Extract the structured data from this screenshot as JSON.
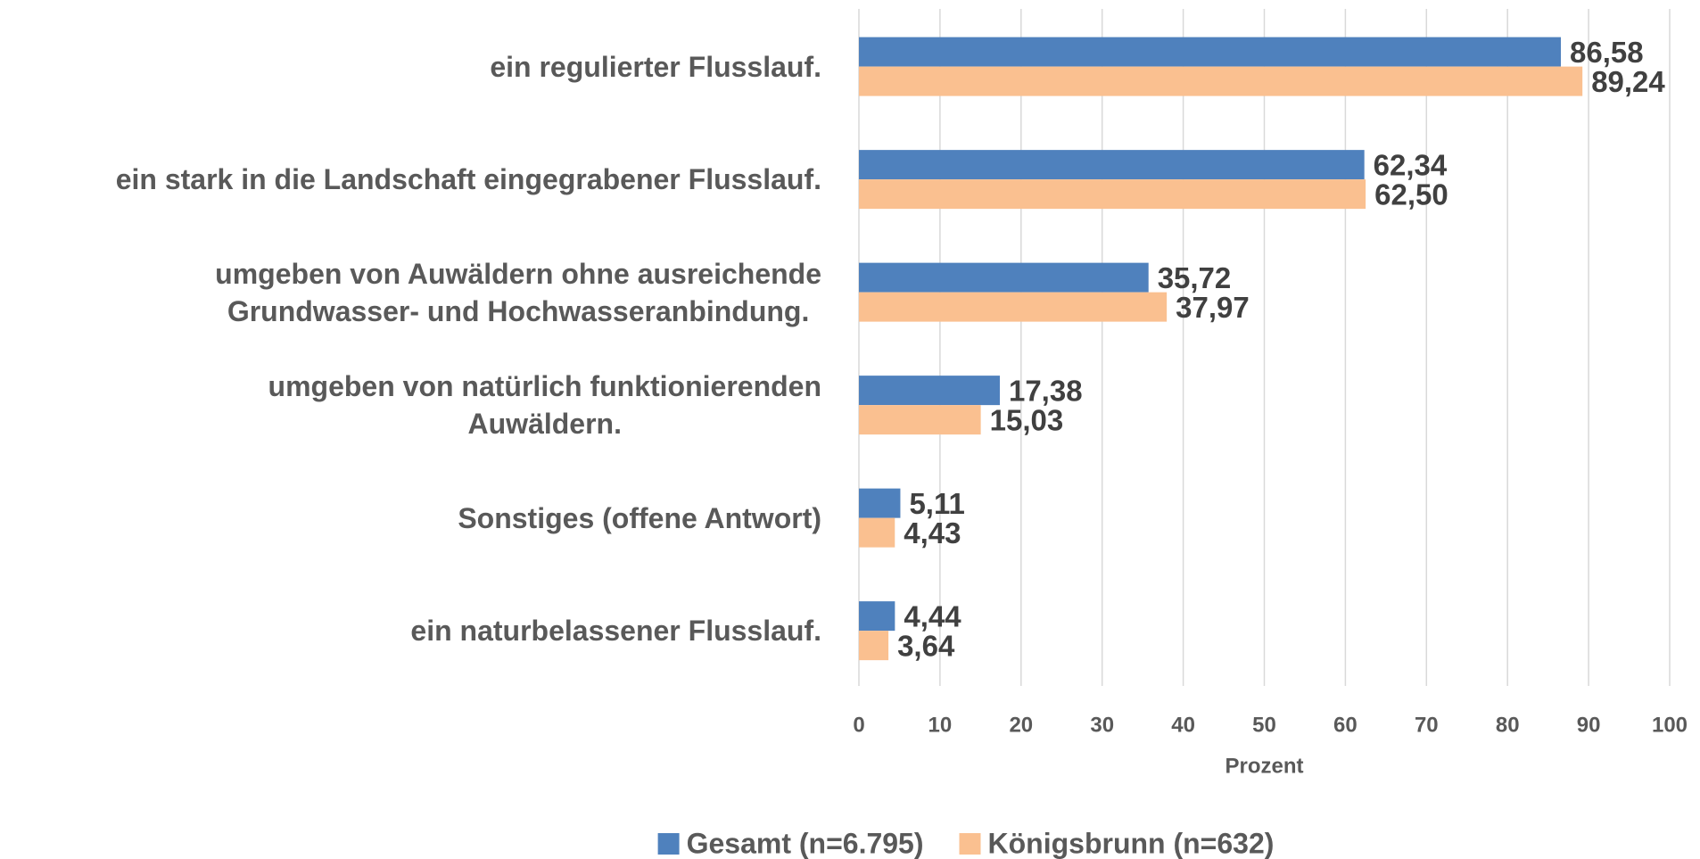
{
  "chart_data": {
    "type": "bar",
    "orientation": "horizontal",
    "categories": [
      "ein regulierter Flusslauf.",
      "ein stark in die Landschaft eingegrabener Flusslauf.",
      "umgeben von Auwäldern ohne ausreichende\nGrundwasser- und Hochwasseranbindung.",
      "umgeben von natürlich funktionierenden\nAuwäldern.",
      "Sonstiges (offene Antwort)",
      "ein naturbelassener Flusslauf."
    ],
    "series": [
      {
        "name": "Gesamt (n=6.795)",
        "color": "#4f81bd",
        "values": [
          86.58,
          62.34,
          35.72,
          17.38,
          5.11,
          4.44
        ],
        "value_labels": [
          "86,58",
          "62,34",
          "35,72",
          "17,38",
          "5,11",
          "4,44"
        ]
      },
      {
        "name": "Königsbrunn (n=632)",
        "color": "#fac090",
        "values": [
          89.24,
          62.5,
          37.97,
          15.03,
          4.43,
          3.64
        ],
        "value_labels": [
          "89,24",
          "62,50",
          "37,97",
          "15,03",
          "4,43",
          "3,64"
        ]
      }
    ],
    "xlabel": "Prozent",
    "xlim": [
      0,
      100
    ],
    "xticks": [
      0,
      10,
      20,
      30,
      40,
      50,
      60,
      70,
      80,
      90,
      100
    ],
    "grid": true,
    "legend": "bottom"
  }
}
